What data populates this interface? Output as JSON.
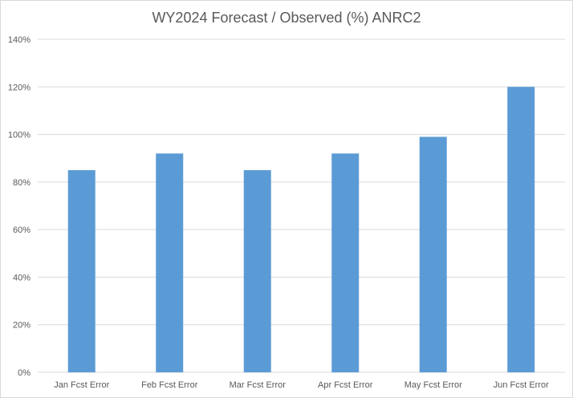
{
  "chart_data": {
    "type": "bar",
    "title": "WY2024 Forecast / Observed (%) ANRC2",
    "xlabel": "",
    "ylabel": "",
    "categories": [
      "Jan Fcst Error",
      "Feb Fcst Error",
      "Mar Fcst Error",
      "Apr Fcst Error",
      "May Fcst Error",
      "Jun Fcst Error"
    ],
    "values": [
      85,
      92,
      85,
      92,
      99,
      120
    ],
    "ylim": [
      0,
      140
    ],
    "yticks": [
      0,
      20,
      40,
      60,
      80,
      100,
      120,
      140
    ],
    "ytick_labels": [
      "0%",
      "20%",
      "40%",
      "60%",
      "80%",
      "100%",
      "120%",
      "140%"
    ],
    "grid": true,
    "legend": "none",
    "colors": {
      "bar": "#5b9bd5",
      "grid": "#d9d9d9",
      "text": "#595959"
    }
  }
}
